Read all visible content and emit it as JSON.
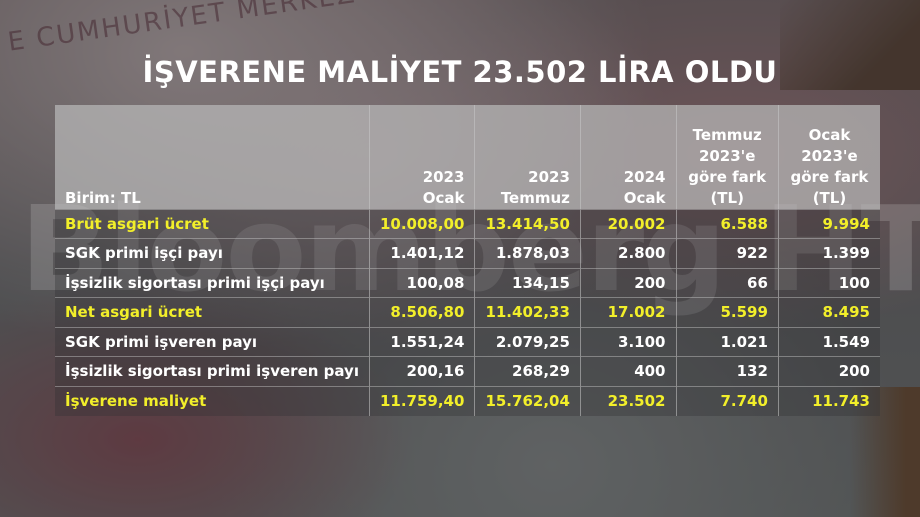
{
  "background": {
    "banknote_text": "E CUMHURİYET MERKEZ",
    "watermark": "Bloomberg HT"
  },
  "title": "İŞVERENE MALİYET 23.502 LİRA OLDU",
  "colors": {
    "highlight_text": "#f2ef2a",
    "normal_text": "#ffffff",
    "header_bg": "#b9b9b9"
  },
  "table": {
    "headers": [
      {
        "lines": [
          "Birim: TL"
        ]
      },
      {
        "lines": [
          "2023",
          "Ocak"
        ]
      },
      {
        "lines": [
          "2023",
          "Temmuz"
        ]
      },
      {
        "lines": [
          "2024",
          "Ocak"
        ]
      },
      {
        "lines": [
          "Temmuz",
          "2023'e",
          "göre fark",
          "(TL)"
        ]
      },
      {
        "lines": [
          "Ocak",
          "2023'e",
          "göre fark",
          "(TL)"
        ]
      }
    ],
    "rows": [
      {
        "label": "Brüt asgari ücret",
        "highlight": true,
        "values": [
          "10.008,00",
          "13.414,50",
          "20.002",
          "6.588",
          "9.994"
        ]
      },
      {
        "label": "SGK primi işçi payı",
        "highlight": false,
        "values": [
          "1.401,12",
          "1.878,03",
          "2.800",
          "922",
          "1.399"
        ]
      },
      {
        "label": "İşsizlik sigortası primi işçi payı",
        "highlight": false,
        "values": [
          "100,08",
          "134,15",
          "200",
          "66",
          "100"
        ]
      },
      {
        "label": "Net asgari ücret",
        "highlight": true,
        "values": [
          "8.506,80",
          "11.402,33",
          "17.002",
          "5.599",
          "8.495"
        ]
      },
      {
        "label": "SGK primi işveren payı",
        "highlight": false,
        "values": [
          "1.551,24",
          "2.079,25",
          "3.100",
          "1.021",
          "1.549"
        ]
      },
      {
        "label": "İşsizlik sigortası primi işveren payı",
        "highlight": false,
        "values": [
          "200,16",
          "268,29",
          "400",
          "132",
          "200"
        ]
      },
      {
        "label": "İşverene maliyet",
        "highlight": true,
        "values": [
          "11.759,40",
          "15.762,04",
          "23.502",
          "7.740",
          "11.743"
        ]
      }
    ]
  }
}
